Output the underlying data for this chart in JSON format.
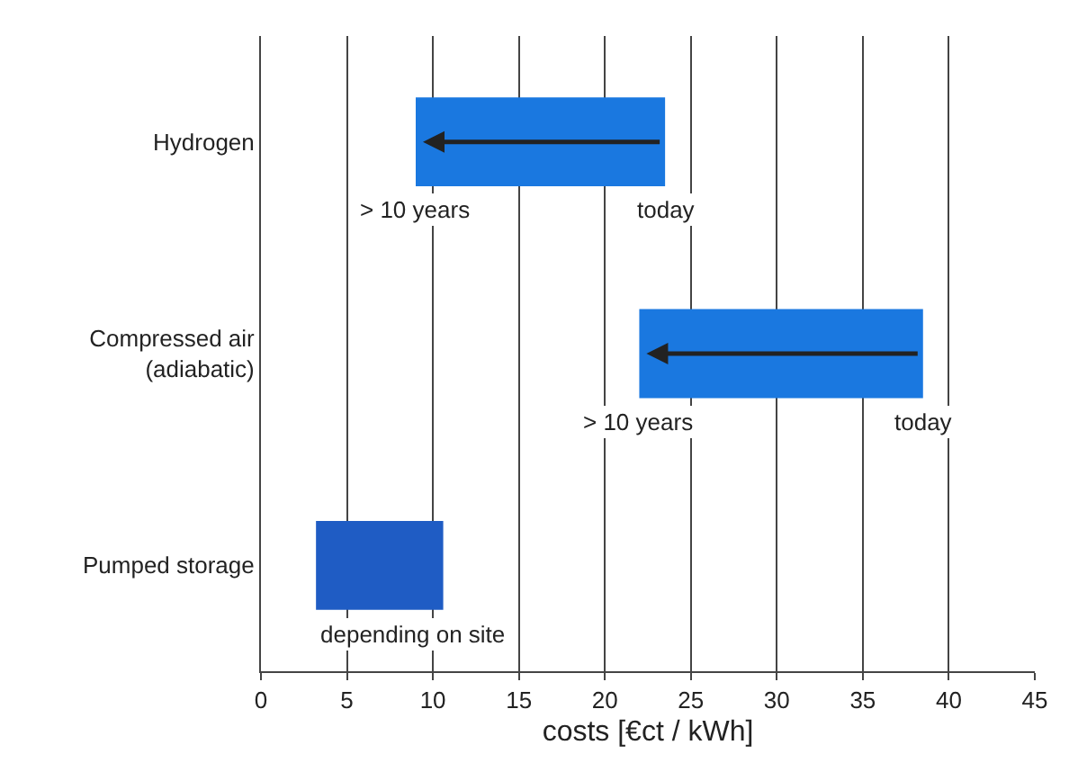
{
  "chart_data": {
    "type": "bar",
    "orientation": "horizontal",
    "xlabel": "costs [€ct / kWh]",
    "categories": [
      "Hydrogen",
      "Compressed air (adiabatic)",
      "Pumped storage"
    ],
    "base": [
      9,
      22,
      3.2
    ],
    "values": [
      14.5,
      16.5,
      7.4
    ],
    "colors": [
      "#1a78e0",
      "#1a78e0",
      "#1f5cc4"
    ],
    "xlim": [
      0,
      45
    ],
    "xticks": [
      0,
      5,
      10,
      15,
      20,
      25,
      30,
      35,
      40,
      45
    ],
    "grid": "x",
    "annotations": [
      {
        "text": "> 10 years",
        "x": 9,
        "y": "Hydrogen"
      },
      {
        "text": "today",
        "x": 23.5,
        "y": "Hydrogen"
      },
      {
        "text": "> 10 years",
        "x": 22,
        "y": "Compressed air (adiabatic)"
      },
      {
        "text": "today",
        "x": 38.5,
        "y": "Compressed air (adiabatic)"
      },
      {
        "text": "depending on site",
        "x": 3.2,
        "y": "Pumped storage"
      }
    ]
  }
}
